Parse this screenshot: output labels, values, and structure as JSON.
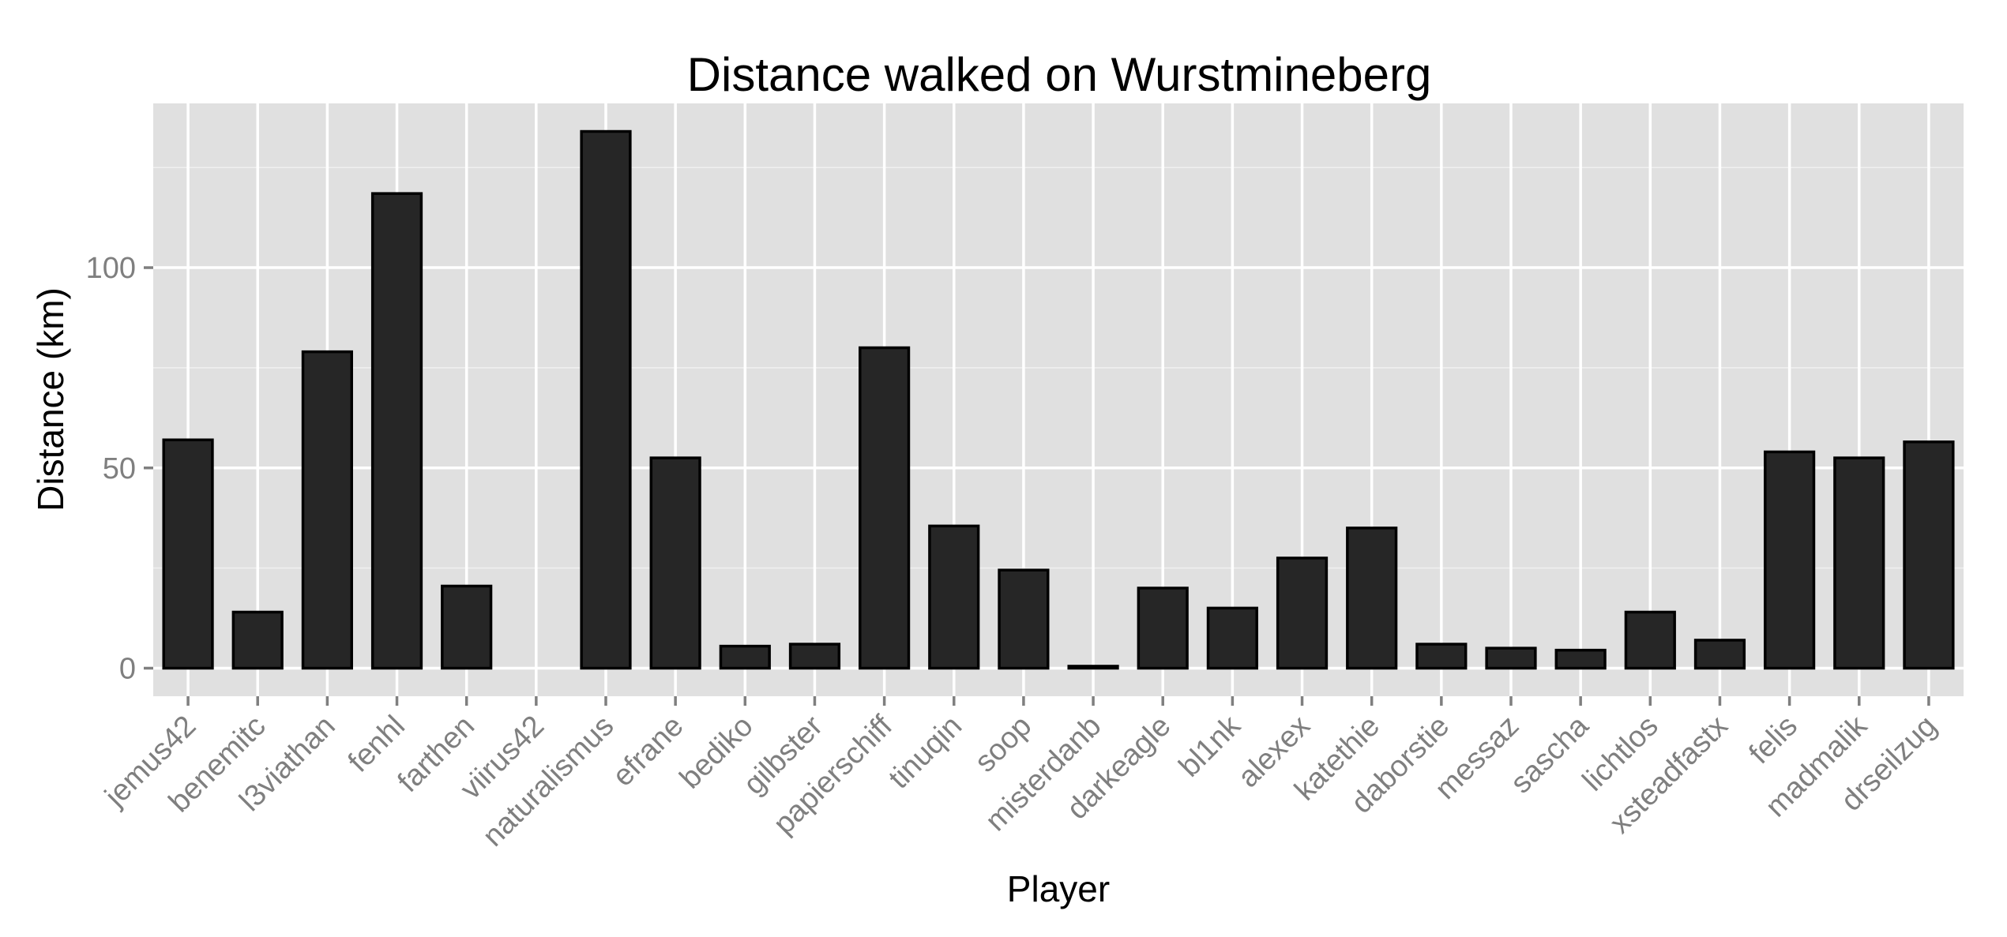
{
  "chart_data": {
    "type": "bar",
    "title": "Distance walked on Wurstmineberg",
    "xlabel": "Player",
    "ylabel": "Distance (km)",
    "categories": [
      "jemus42",
      "benemitc",
      "l3viathan",
      "fenhl",
      "farthen",
      "viirus42",
      "naturalismus",
      "efrane",
      "bediko",
      "gilbster",
      "papierschiff",
      "tinuqin",
      "soop",
      "misterdanb",
      "darkeagle",
      "bl1nk",
      "alexex",
      "katethie",
      "daborstie",
      "messaz",
      "sascha",
      "lichtlos",
      "xsteadfastx",
      "felis",
      "madmalik",
      "drseilzug"
    ],
    "values": [
      57,
      14,
      79,
      118.5,
      20.5,
      0,
      134,
      52.5,
      5.5,
      6,
      80,
      35.5,
      24.5,
      0.5,
      20,
      15,
      27.5,
      35,
      6,
      5,
      4.5,
      14,
      7,
      54,
      52.5,
      56.5
    ],
    "yticks": [
      0,
      50,
      100
    ],
    "ylim": [
      -7,
      141
    ],
    "grid": true,
    "panel_background": "#e0e0e0",
    "bar_color": "#262626"
  }
}
